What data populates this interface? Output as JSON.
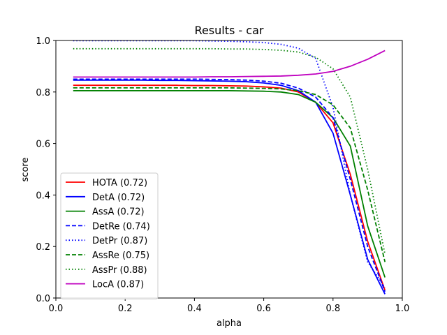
{
  "chart_data": {
    "type": "line",
    "title": "Results - car",
    "xlabel": "alpha",
    "ylabel": "score",
    "xlim": [
      0.0,
      1.0
    ],
    "ylim": [
      0.0,
      1.0
    ],
    "xticks": [
      "0.0",
      "0.2",
      "0.4",
      "0.6",
      "0.8",
      "1.0"
    ],
    "yticks": [
      "0.0",
      "0.2",
      "0.4",
      "0.6",
      "0.8",
      "1.0"
    ],
    "grid": false,
    "legend_position": "lower-left",
    "x": [
      0.05,
      0.1,
      0.15,
      0.2,
      0.25,
      0.3,
      0.35,
      0.4,
      0.45,
      0.5,
      0.55,
      0.6,
      0.65,
      0.7,
      0.75,
      0.8,
      0.85,
      0.9,
      0.95
    ],
    "series": [
      {
        "name": "HOTA (0.72)",
        "color": "#ff0000",
        "style": "solid",
        "values": [
          0.826,
          0.826,
          0.826,
          0.826,
          0.826,
          0.826,
          0.826,
          0.825,
          0.825,
          0.824,
          0.823,
          0.82,
          0.815,
          0.8,
          0.76,
          0.68,
          0.48,
          0.22,
          0.03
        ]
      },
      {
        "name": "DetA (0.72)",
        "color": "#0000ff",
        "style": "solid",
        "values": [
          0.846,
          0.846,
          0.846,
          0.846,
          0.846,
          0.845,
          0.845,
          0.844,
          0.843,
          0.842,
          0.84,
          0.835,
          0.826,
          0.805,
          0.76,
          0.64,
          0.4,
          0.15,
          0.015
        ]
      },
      {
        "name": "AssA (0.72)",
        "color": "#008000",
        "style": "solid",
        "values": [
          0.805,
          0.805,
          0.805,
          0.805,
          0.805,
          0.805,
          0.805,
          0.805,
          0.805,
          0.805,
          0.804,
          0.803,
          0.8,
          0.79,
          0.76,
          0.7,
          0.59,
          0.28,
          0.08
        ]
      },
      {
        "name": "DetRe (0.74)",
        "color": "#0000ff",
        "style": "dashed",
        "values": [
          0.85,
          0.85,
          0.85,
          0.85,
          0.85,
          0.85,
          0.85,
          0.85,
          0.849,
          0.848,
          0.846,
          0.842,
          0.834,
          0.815,
          0.78,
          0.7,
          0.46,
          0.2,
          0.025
        ]
      },
      {
        "name": "DetPr (0.87)",
        "color": "#0000ff",
        "style": "dotted",
        "values": [
          0.999,
          0.999,
          0.999,
          0.999,
          0.999,
          0.999,
          0.999,
          0.999,
          0.998,
          0.997,
          0.995,
          0.992,
          0.985,
          0.97,
          0.93,
          0.74,
          0.4,
          0.14,
          0.04
        ]
      },
      {
        "name": "AssRe (0.75)",
        "color": "#008000",
        "style": "dashed",
        "values": [
          0.816,
          0.816,
          0.816,
          0.816,
          0.816,
          0.816,
          0.816,
          0.816,
          0.816,
          0.816,
          0.815,
          0.814,
          0.812,
          0.805,
          0.79,
          0.75,
          0.66,
          0.42,
          0.14
        ]
      },
      {
        "name": "AssPr (0.88)",
        "color": "#008000",
        "style": "dotted",
        "values": [
          0.968,
          0.968,
          0.968,
          0.968,
          0.968,
          0.968,
          0.968,
          0.968,
          0.968,
          0.967,
          0.967,
          0.965,
          0.962,
          0.955,
          0.935,
          0.89,
          0.78,
          0.5,
          0.17
        ]
      },
      {
        "name": "LocA (0.87)",
        "color": "#bf00bf",
        "style": "solid",
        "values": [
          0.858,
          0.858,
          0.858,
          0.858,
          0.858,
          0.858,
          0.858,
          0.858,
          0.859,
          0.859,
          0.86,
          0.861,
          0.862,
          0.865,
          0.87,
          0.88,
          0.9,
          0.927,
          0.961
        ]
      }
    ]
  }
}
